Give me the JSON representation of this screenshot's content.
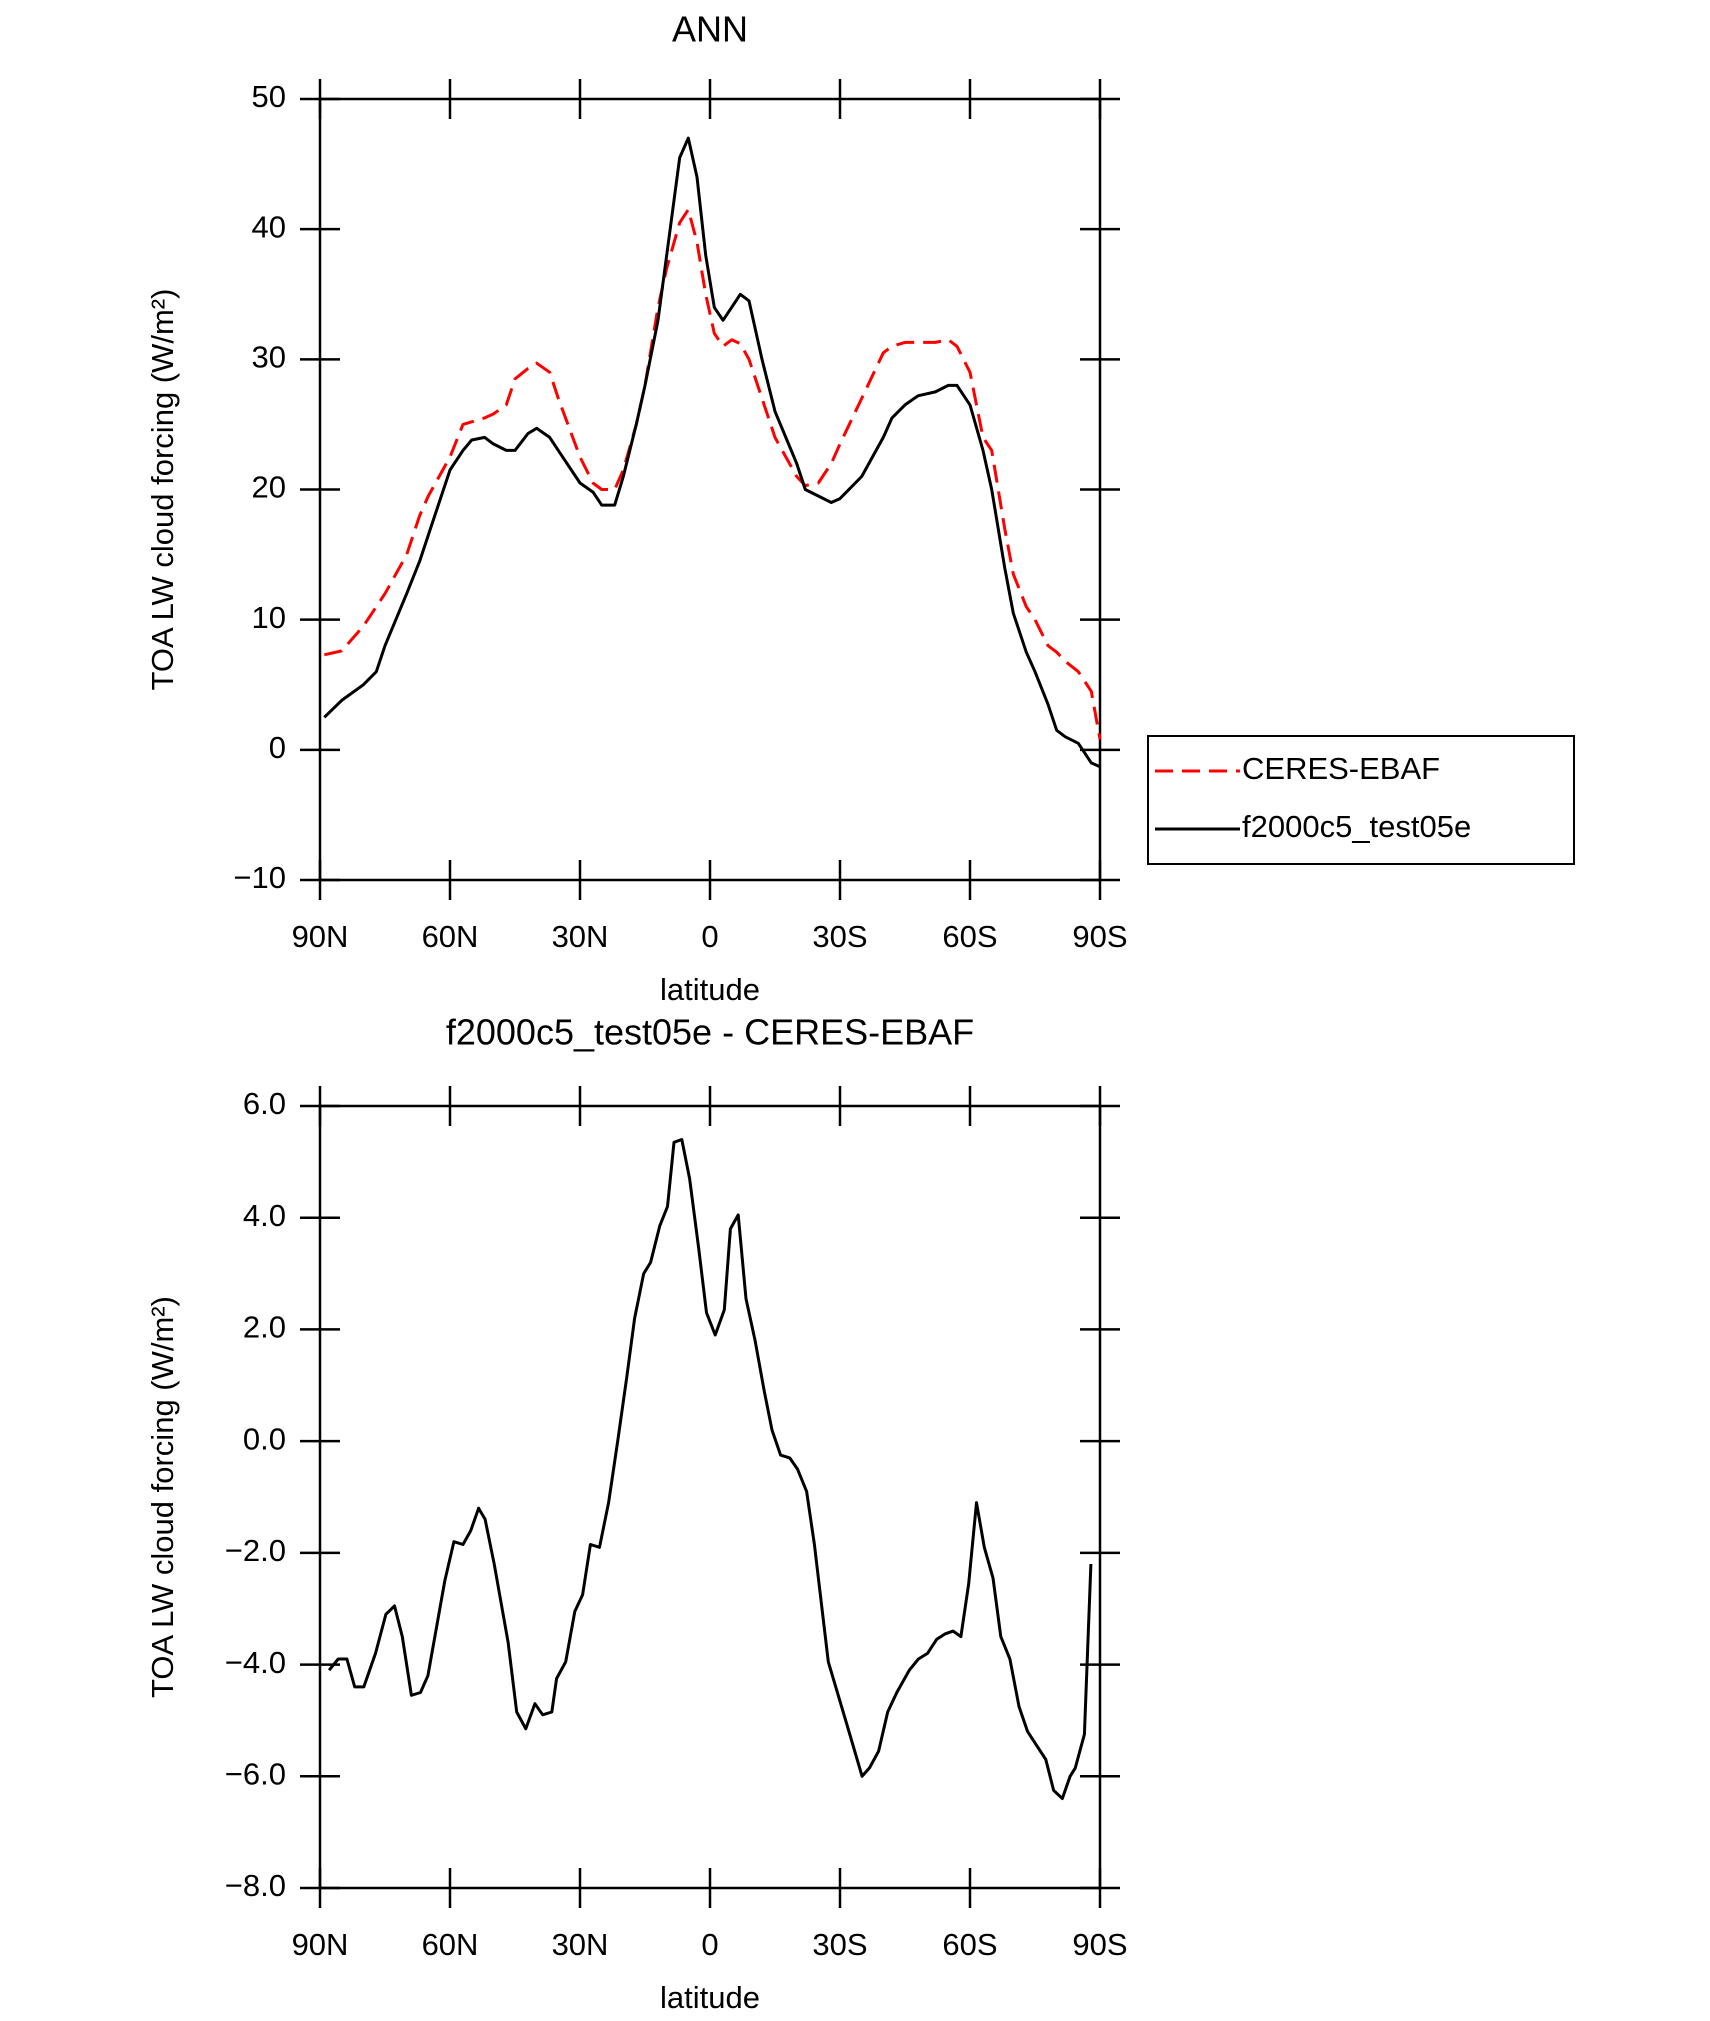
{
  "chart_data": [
    {
      "type": "line",
      "title": "ANN",
      "xlabel": "latitude",
      "ylabel": "TOA LW cloud forcing (W/m²)",
      "x": [
        89,
        85,
        80,
        77,
        75,
        70,
        67,
        65,
        60,
        57,
        55,
        52,
        50,
        47,
        45,
        42,
        40,
        37,
        35,
        30,
        27,
        25,
        22,
        20,
        17,
        15,
        12,
        10,
        7,
        5,
        3,
        1,
        -1,
        -3,
        -5,
        -7,
        -9,
        -12,
        -15,
        -20,
        -22,
        -25,
        -28,
        -30,
        -35,
        -40,
        -42,
        -45,
        -48,
        -52,
        -55,
        -57,
        -60,
        -63,
        -65,
        -68,
        -70,
        -73,
        -75,
        -78,
        -80,
        -82,
        -85,
        -88,
        -90
      ],
      "series": [
        {
          "name": "CERES-EBAF",
          "color": "#ff0000",
          "dashed": true,
          "values": [
            7.3,
            7.6,
            9.5,
            11,
            12,
            15,
            18,
            19.5,
            22.5,
            25,
            25.2,
            25.5,
            25.8,
            26.5,
            28.5,
            29.3,
            29.7,
            29,
            27,
            22.5,
            20.5,
            20,
            20,
            21.5,
            25,
            28,
            34,
            37,
            40.5,
            41.5,
            39,
            35,
            32,
            31,
            31.5,
            31.2,
            30,
            27,
            24,
            21,
            20.3,
            20.5,
            22,
            23.5,
            27,
            30.5,
            31,
            31.3,
            31.3,
            31.3,
            31.5,
            31,
            29,
            24,
            23,
            17,
            13.5,
            11,
            10,
            8,
            7.5,
            6.8,
            6,
            4.5,
            0.8
          ]
        },
        {
          "name": "f2000c5_test05e",
          "color": "#000000",
          "dashed": false,
          "values": [
            2.5,
            3.8,
            5,
            6,
            8,
            12,
            14.5,
            16.5,
            21.5,
            23,
            23.8,
            24,
            23.5,
            23,
            23,
            24.3,
            24.7,
            24,
            23,
            20.5,
            19.8,
            18.8,
            18.8,
            21,
            25,
            28,
            33,
            38,
            45.5,
            47,
            44,
            38,
            34,
            33,
            34,
            35,
            34.5,
            30,
            26,
            22,
            20,
            19.5,
            19,
            19.3,
            21,
            24,
            25.5,
            26.5,
            27.2,
            27.5,
            28,
            28,
            26.5,
            23,
            20,
            14,
            10.5,
            7.5,
            6,
            3.5,
            1.5,
            1,
            0.5,
            -1,
            -1.3
          ]
        }
      ],
      "xlim": [
        90,
        -90
      ],
      "xticks": [
        {
          "value": 90,
          "label": "90N"
        },
        {
          "value": 60,
          "label": "60N"
        },
        {
          "value": 30,
          "label": "30N"
        },
        0,
        {
          "value": -30,
          "label": "30S"
        },
        {
          "value": -60,
          "label": "60S"
        },
        {
          "value": -90,
          "label": "90S"
        }
      ],
      "ylim": [
        -10,
        50
      ],
      "yticks": [
        {
          "value": -10,
          "label": "−10"
        },
        0,
        10,
        20,
        30,
        40,
        50
      ],
      "legend": "right"
    },
    {
      "type": "line",
      "title": "f2000c5_test05e - CERES-EBAF",
      "xlabel": "latitude",
      "ylabel": "TOA LW cloud forcing (W/m²)",
      "x": [
        87.9,
        85.8,
        83.8,
        82,
        79.9,
        77.2,
        74.8,
        72.8,
        71,
        68.9,
        66.8,
        65.1,
        61.2,
        59.1,
        57,
        55.2,
        53.4,
        51.9,
        49.8,
        46.6,
        44.6,
        42.5,
        40.4,
        38.6,
        36.5,
        35.4,
        33.3,
        31.2,
        29.4,
        27.6,
        25.5,
        23.4,
        21.3,
        19.2,
        17.4,
        15.3,
        13.7,
        11.6,
        9.8,
        8.3,
        6.5,
        4.7,
        2.6,
        0.8,
        -1.2,
        -3.3,
        -4.7,
        -6.5,
        -8.3,
        -10.4,
        -12.5,
        -14.3,
        -16.3,
        -18.4,
        -20.2,
        -22.3,
        -24.1,
        -27.3,
        -31.5,
        -35.1,
        -36.8,
        -38.9,
        -41,
        -43.1,
        -46,
        -48.1,
        -50.2,
        -52.3,
        -54.3,
        -56.1,
        -57.9,
        -59.7,
        -61.5,
        -63.3,
        -65.3,
        -67.1,
        -69.2,
        -71.3,
        -73.3,
        -75.4,
        -77.5,
        -79.3,
        -81.3,
        -83.1,
        -84.3,
        -86.4,
        -87.9
      ],
      "series": [
        {
          "color": "#000000",
          "dashed": false,
          "values": [
            -4.1,
            -3.9,
            -3.9,
            -4.4,
            -4.4,
            -3.8,
            -3.1,
            -2.95,
            -3.5,
            -4.55,
            -4.5,
            -4.2,
            -2.5,
            -1.8,
            -1.85,
            -1.6,
            -1.2,
            -1.4,
            -2.2,
            -3.6,
            -4.85,
            -5.15,
            -4.7,
            -4.9,
            -4.85,
            -4.25,
            -3.95,
            -3.05,
            -2.75,
            -1.85,
            -1.9,
            -1.1,
            0,
            1.15,
            2.2,
            3,
            3.2,
            3.85,
            4.2,
            5.35,
            5.4,
            4.7,
            3.45,
            2.3,
            1.9,
            2.35,
            3.8,
            4.05,
            2.55,
            1.8,
            0.9,
            0.2,
            -0.25,
            -0.3,
            -0.5,
            -0.9,
            -1.85,
            -3.95,
            -5.05,
            -6,
            -5.85,
            -5.55,
            -4.85,
            -4.5,
            -4.1,
            -3.9,
            -3.8,
            -3.55,
            -3.45,
            -3.4,
            -3.5,
            -2.55,
            -1.1,
            -1.9,
            -2.45,
            -3.5,
            -3.9,
            -4.75,
            -5.2,
            -5.45,
            -5.7,
            -6.25,
            -6.4,
            -6,
            -5.85,
            -5.25,
            -2.2
          ]
        }
      ],
      "xlim": [
        90,
        -90
      ],
      "xticks": [
        {
          "value": 90,
          "label": "90N"
        },
        {
          "value": 60,
          "label": "60N"
        },
        {
          "value": 30,
          "label": "30N"
        },
        0,
        {
          "value": -30,
          "label": "30S"
        },
        {
          "value": -60,
          "label": "60S"
        },
        {
          "value": -90,
          "label": "90S"
        }
      ],
      "ylim": [
        -8,
        6
      ],
      "yticks": [
        {
          "value": -8,
          "label": "−8.0"
        },
        {
          "value": -6,
          "label": "−6.0"
        },
        {
          "value": -4,
          "label": "−4.0"
        },
        {
          "value": -2,
          "label": "−2.0"
        },
        {
          "value": 0,
          "label": "0.0"
        },
        {
          "value": 2,
          "label": "2.0"
        },
        {
          "value": 4,
          "label": "4.0"
        },
        {
          "value": 6,
          "label": "6.0"
        }
      ]
    }
  ]
}
